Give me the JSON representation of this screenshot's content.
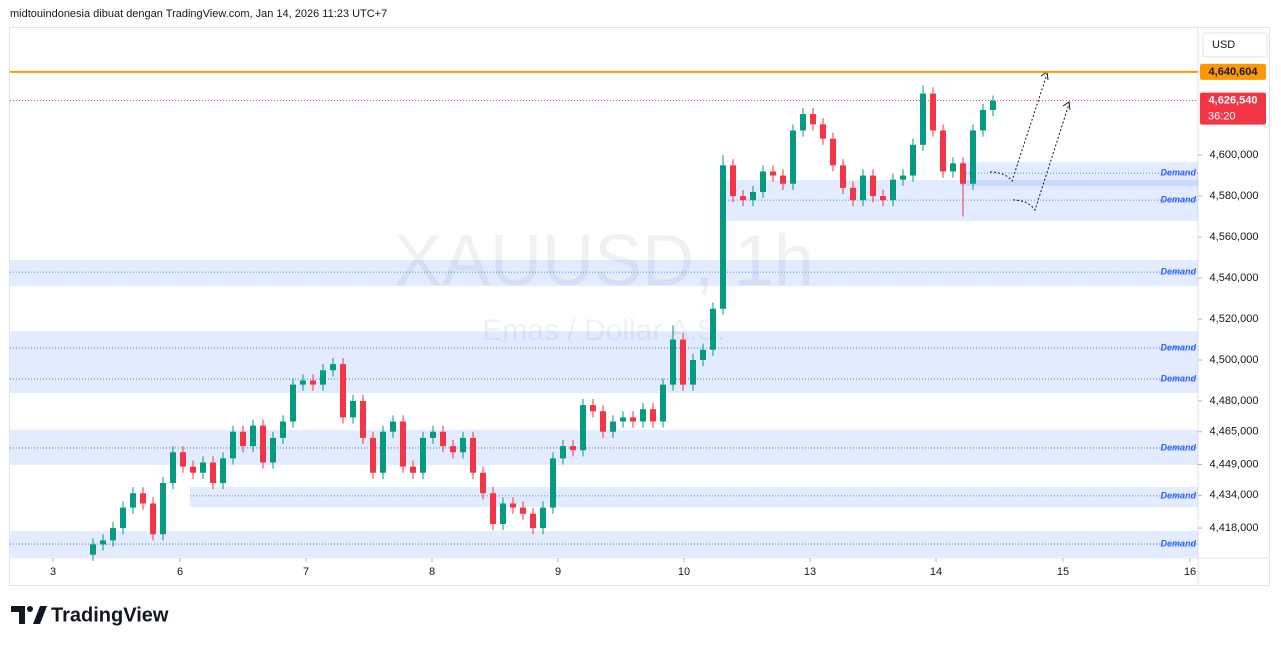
{
  "header": {
    "caption": "midtouindonesia dibuat dengan TradingView.com, Jan 14, 2026 11:23 UTC+7"
  },
  "brand": "TradingView",
  "chart_data": {
    "type": "candlestick",
    "title": "XAUUSD, 1h",
    "subtitle": "Emas / Dollar A.S.",
    "currency": "USD",
    "up_color": "#089981",
    "down_color": "#f23645",
    "open": [
      4405,
      4410,
      4412,
      4418,
      4428,
      4435,
      4430,
      4415,
      4440,
      4455,
      4448,
      4445,
      4450,
      4440,
      4452,
      4465,
      4458,
      4468,
      4450,
      4462,
      4470,
      4488,
      4490,
      4488,
      4495,
      4498,
      4472,
      4480,
      4462,
      4445,
      4465,
      4470,
      4448,
      4445,
      4462,
      4465,
      4458,
      4455,
      4462,
      4445,
      4435,
      4420,
      4430,
      4428,
      4425,
      4418,
      4428,
      4452,
      4458,
      4456,
      4478,
      4475,
      4465,
      4470,
      4472,
      4470,
      4476,
      4470,
      4488,
      4510,
      4488,
      4500,
      4505,
      4525,
      4595,
      4580,
      4578,
      4582,
      4592,
      4590,
      4586,
      4612,
      4620,
      4615,
      4608,
      4595,
      4584,
      4578,
      4590,
      4580,
      4578,
      4588,
      4590,
      4605,
      4630,
      4612,
      4592,
      4596,
      4586,
      4612,
      4622
    ],
    "high": [
      4413,
      4415,
      4421,
      4431,
      4438,
      4438,
      4433,
      4443,
      4458,
      4458,
      4451,
      4453,
      4453,
      4455,
      4468,
      4468,
      4471,
      4471,
      4465,
      4473,
      4491,
      4493,
      4493,
      4498,
      4501,
      4501,
      4483,
      4483,
      4465,
      4468,
      4473,
      4473,
      4451,
      4465,
      4468,
      4468,
      4461,
      4465,
      4465,
      4448,
      4438,
      4433,
      4433,
      4431,
      4428,
      4431,
      4455,
      4461,
      4461,
      4481,
      4481,
      4478,
      4473,
      4475,
      4475,
      4479,
      4479,
      4491,
      4517,
      4513,
      4503,
      4508,
      4528,
      4600,
      4598,
      4583,
      4585,
      4595,
      4595,
      4593,
      4615,
      4623,
      4623,
      4618,
      4611,
      4598,
      4587,
      4593,
      4593,
      4583,
      4591,
      4593,
      4608,
      4634,
      4633,
      4615,
      4599,
      4599,
      4615,
      4625,
      4629
    ],
    "low": [
      4402,
      4407,
      4409,
      4415,
      4425,
      4427,
      4412,
      4412,
      4437,
      4445,
      4442,
      4442,
      4437,
      4437,
      4449,
      4455,
      4455,
      4447,
      4447,
      4459,
      4467,
      4485,
      4485,
      4485,
      4492,
      4469,
      4469,
      4459,
      4442,
      4442,
      4462,
      4445,
      4442,
      4442,
      4459,
      4455,
      4452,
      4452,
      4442,
      4432,
      4417,
      4417,
      4425,
      4422,
      4415,
      4415,
      4425,
      4449,
      4453,
      4453,
      4472,
      4462,
      4462,
      4467,
      4467,
      4467,
      4467,
      4467,
      4485,
      4485,
      4485,
      4497,
      4502,
      4522,
      4577,
      4575,
      4575,
      4579,
      4587,
      4583,
      4583,
      4609,
      4612,
      4605,
      4592,
      4581,
      4575,
      4575,
      4577,
      4575,
      4575,
      4585,
      4587,
      4602,
      4609,
      4589,
      4589,
      4570,
      4583,
      4609,
      4619
    ],
    "close": [
      4410,
      4412,
      4418,
      4428,
      4435,
      4430,
      4415,
      4440,
      4455,
      4448,
      4445,
      4450,
      4440,
      4452,
      4465,
      4458,
      4468,
      4450,
      4462,
      4470,
      4488,
      4490,
      4488,
      4495,
      4498,
      4472,
      4480,
      4462,
      4445,
      4465,
      4470,
      4448,
      4445,
      4462,
      4465,
      4458,
      4455,
      4462,
      4445,
      4435,
      4420,
      4430,
      4428,
      4425,
      4418,
      4428,
      4452,
      4458,
      4456,
      4478,
      4475,
      4465,
      4470,
      4472,
      4470,
      4476,
      4470,
      4488,
      4510,
      4488,
      4500,
      4505,
      4525,
      4595,
      4580,
      4578,
      4582,
      4592,
      4590,
      4586,
      4612,
      4620,
      4615,
      4608,
      4595,
      4584,
      4578,
      4590,
      4580,
      4578,
      4588,
      4590,
      4605,
      4630,
      4612,
      4592,
      4596,
      4586,
      4612,
      4622,
      4626.54
    ],
    "xlim": [
      -8.3,
      110.5
    ],
    "xticks": [
      {
        "value": -4,
        "label": "3"
      },
      {
        "value": 8.7,
        "label": "6"
      },
      {
        "value": 21.3,
        "label": "7"
      },
      {
        "value": 33.9,
        "label": "8"
      },
      {
        "value": 46.5,
        "label": "9"
      },
      {
        "value": 59.1,
        "label": "10"
      },
      {
        "value": 71.7,
        "label": "13"
      },
      {
        "value": 84.3,
        "label": "14"
      },
      {
        "value": 97,
        "label": "15"
      },
      {
        "value": 109.7,
        "label": "16"
      }
    ],
    "ylim": [
      4403.4,
      4662
    ],
    "yticks": [
      {
        "value": 4418,
        "label": "4,418,000"
      },
      {
        "value": 4434,
        "label": "4,434,000"
      },
      {
        "value": 4449,
        "label": "4,449,000"
      },
      {
        "value": 4465,
        "label": "4,465,000"
      },
      {
        "value": 4480,
        "label": "4,480,000"
      },
      {
        "value": 4500,
        "label": "4,500,000"
      },
      {
        "value": 4520,
        "label": "4,520,000"
      },
      {
        "value": 4540,
        "label": "4,540,000"
      },
      {
        "value": 4560,
        "label": "4,560,000"
      },
      {
        "value": 4580,
        "label": "4,580,000"
      },
      {
        "value": 4600,
        "label": "4,600,000"
      }
    ],
    "zones": [
      {
        "label": "Demand",
        "low": 4584.9,
        "high": 4596.6,
        "level": 4591.2,
        "start": 86.7
      },
      {
        "label": "Demand",
        "low": 4567.8,
        "high": 4587.8,
        "level": 4578,
        "start": 63.2
      },
      {
        "label": "Demand",
        "low": 4536.1,
        "high": 4548.8,
        "level": 4542.9,
        "start": -8.3
      },
      {
        "label": "Demand",
        "low": 4497.1,
        "high": 4514.1,
        "level": 4505.9,
        "start": -8.3
      },
      {
        "label": "Demand",
        "low": 4483.9,
        "high": 4497.1,
        "level": 4490.7,
        "start": -8.3
      },
      {
        "label": "Demand",
        "low": 4448.8,
        "high": 4465.9,
        "level": 4457.1,
        "start": -8.3
      },
      {
        "label": "Demand",
        "low": 4428.3,
        "high": 4438,
        "level": 4433.7,
        "start": 9.7
      },
      {
        "label": "Demand",
        "low": 4403.9,
        "high": 4416.6,
        "level": 4410.2,
        "start": -8.3
      }
    ],
    "target_line": {
      "value": 4640.604,
      "label": "4,640,604",
      "color": "#ff9800"
    },
    "price_line": {
      "value": 4626.54,
      "label": "4,626,540",
      "countdown": "36:20",
      "color": "#f23645"
    }
  }
}
